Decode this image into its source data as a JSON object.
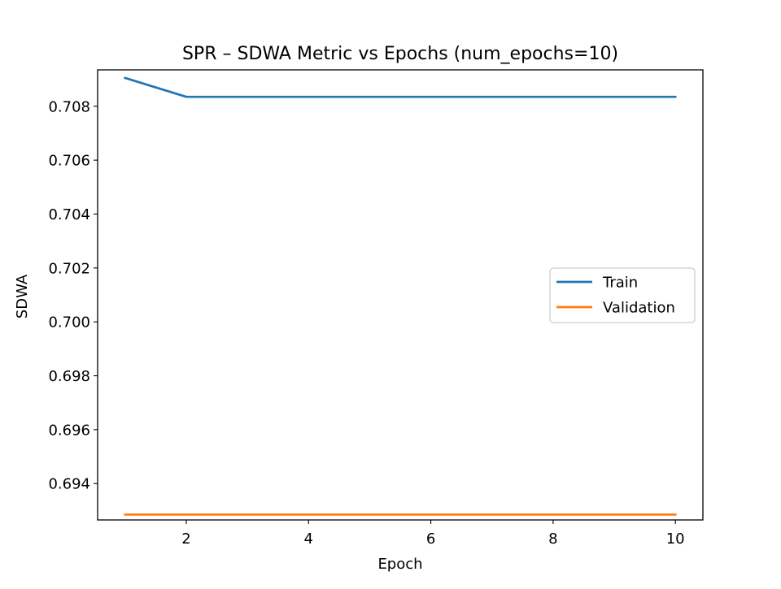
{
  "chart_data": {
    "type": "line",
    "title": "SPR – SDWA Metric vs Epochs (num_epochs=10)",
    "xlabel": "Epoch",
    "ylabel": "SDWA",
    "x": [
      1,
      2,
      3,
      4,
      5,
      6,
      7,
      8,
      9,
      10
    ],
    "xlim": [
      0.55,
      10.45
    ],
    "ylim": [
      0.69265,
      0.70935
    ],
    "xticks": [
      2,
      4,
      6,
      8,
      10
    ],
    "yticks": [
      0.694,
      0.696,
      0.698,
      0.7,
      0.702,
      0.704,
      0.706,
      0.708
    ],
    "ytick_labels": [
      "0.694",
      "0.696",
      "0.698",
      "0.700",
      "0.702",
      "0.704",
      "0.706",
      "0.708"
    ],
    "grid": false,
    "legend_position": "center-right",
    "series": [
      {
        "name": "Train",
        "color": "#1f77b4",
        "values": [
          0.70905,
          0.70835,
          0.70835,
          0.70835,
          0.70835,
          0.70835,
          0.70835,
          0.70835,
          0.70835,
          0.70835
        ]
      },
      {
        "name": "Validation",
        "color": "#ff7f0e",
        "values": [
          0.69285,
          0.69285,
          0.69285,
          0.69285,
          0.69285,
          0.69285,
          0.69285,
          0.69285,
          0.69285,
          0.69285
        ]
      }
    ]
  }
}
